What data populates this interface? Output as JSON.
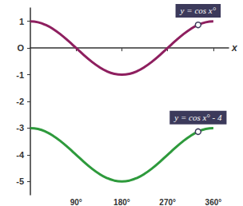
{
  "chart_data": {
    "type": "line",
    "x": [
      0,
      15,
      30,
      45,
      60,
      75,
      90,
      105,
      120,
      135,
      150,
      165,
      180,
      195,
      210,
      225,
      240,
      255,
      270,
      285,
      300,
      315,
      330,
      345,
      360
    ],
    "series": [
      {
        "name": "y = cos x°",
        "color": "#8e1f5f",
        "values": [
          1,
          0.966,
          0.866,
          0.707,
          0.5,
          0.259,
          0,
          -0.259,
          -0.5,
          -0.707,
          -0.866,
          -0.966,
          -1,
          -0.966,
          -0.866,
          -0.707,
          -0.5,
          -0.259,
          0,
          0.259,
          0.5,
          0.707,
          0.866,
          0.966,
          1
        ],
        "annotation": {
          "text": "y = cos x°",
          "x": 330,
          "y": 0.866
        }
      },
      {
        "name": "y = cos x° - 4",
        "color": "#2e9a3c",
        "values": [
          -3,
          -3.034,
          -3.134,
          -3.293,
          -3.5,
          -3.741,
          -4,
          -4.259,
          -4.5,
          -4.707,
          -4.866,
          -4.966,
          -5,
          -4.966,
          -4.866,
          -4.707,
          -4.5,
          -4.259,
          -4,
          -3.741,
          -3.5,
          -3.293,
          -3.134,
          -3.034,
          -3
        ],
        "annotation": {
          "text": "y = cos x° - 4",
          "x": 330,
          "y": -3.134
        }
      }
    ],
    "xlabel": "x",
    "xlim": [
      0,
      390
    ],
    "xticks": [
      {
        "value": 90,
        "label": "90°"
      },
      {
        "value": 180,
        "label": "180°"
      },
      {
        "value": 270,
        "label": "270°"
      },
      {
        "value": 360,
        "label": "360°"
      }
    ],
    "ylim": [
      -5.5,
      1.5
    ],
    "yticks": [
      1,
      {
        "value": 0,
        "label": "O"
      },
      -1,
      -2,
      -3,
      -4,
      -5
    ],
    "grid": false
  }
}
